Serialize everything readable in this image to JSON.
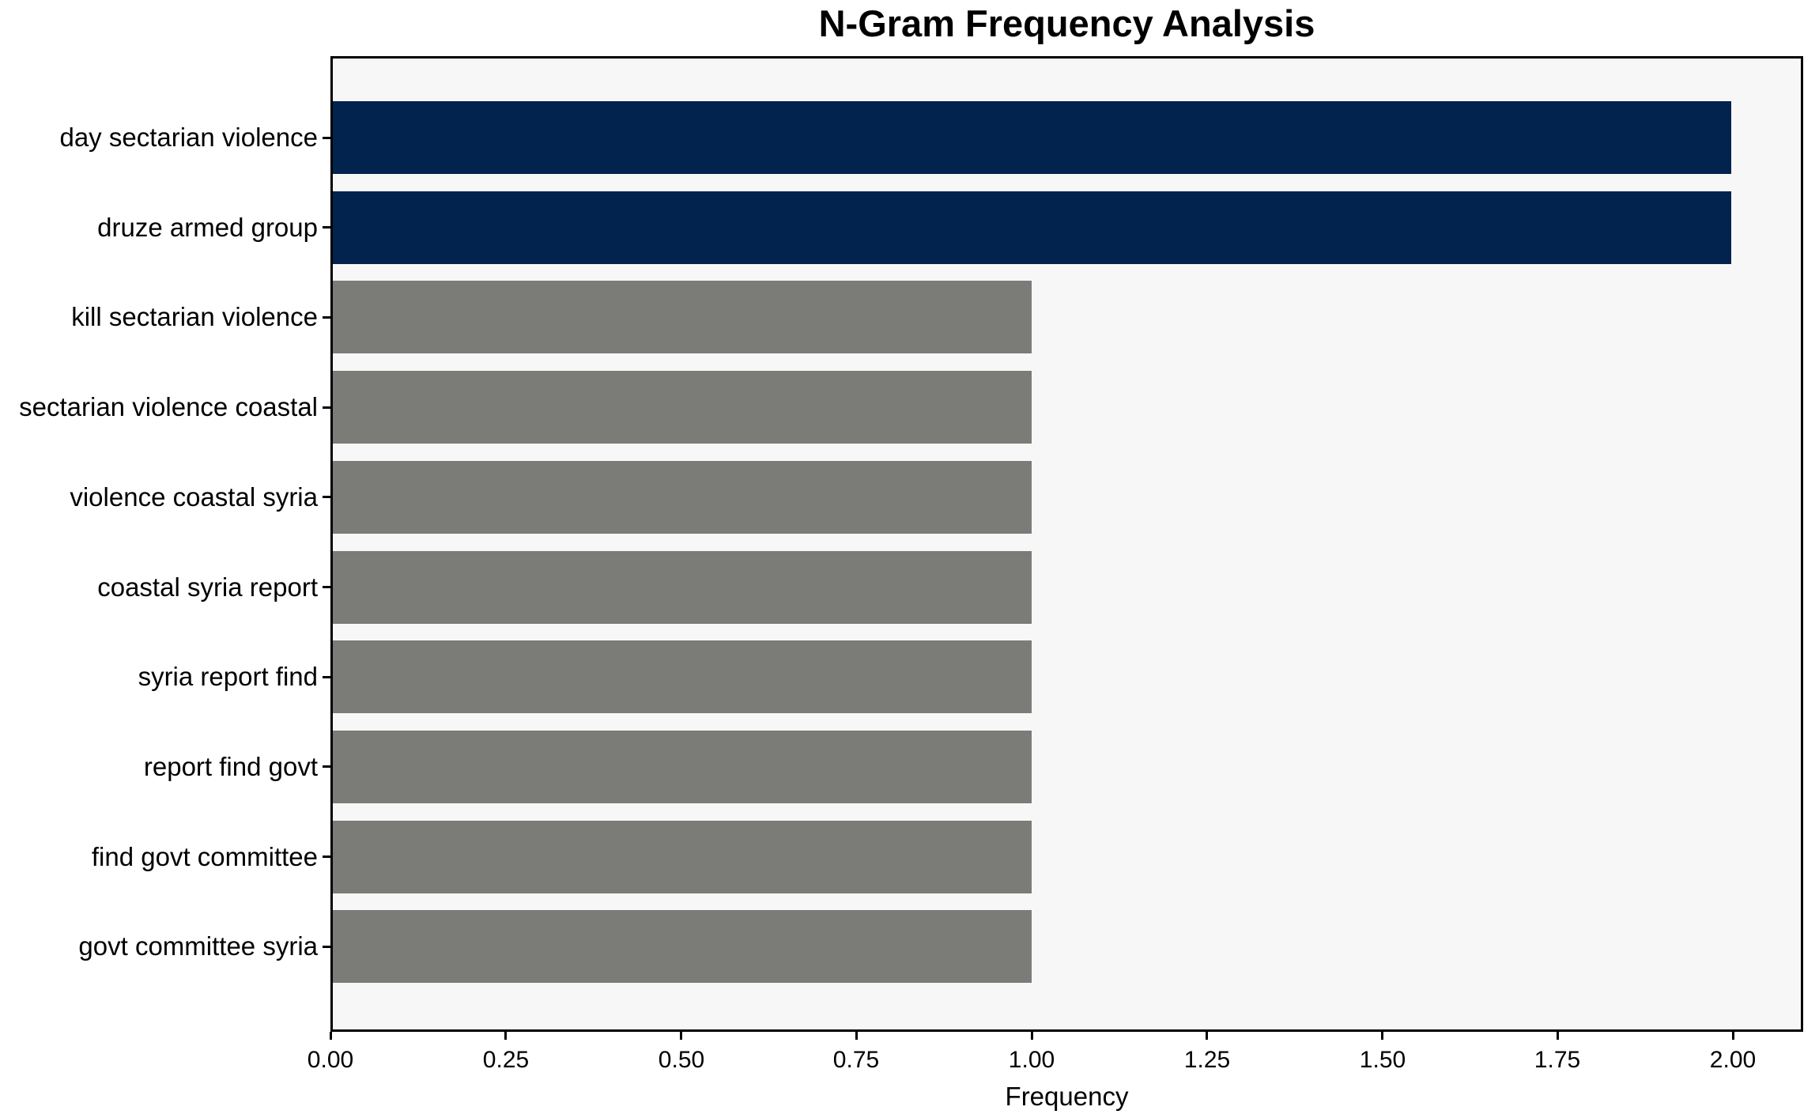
{
  "chart_data": {
    "type": "bar",
    "orientation": "horizontal",
    "title": "N-Gram Frequency Analysis",
    "xlabel": "Frequency",
    "ylabel": "",
    "categories": [
      "day sectarian violence",
      "druze armed group",
      "kill sectarian violence",
      "sectarian violence coastal",
      "violence coastal syria",
      "coastal syria report",
      "syria report find",
      "report find govt",
      "find govt committee",
      "govt committee syria"
    ],
    "values": [
      2.0,
      2.0,
      1.0,
      1.0,
      1.0,
      1.0,
      1.0,
      1.0,
      1.0,
      1.0
    ],
    "xlim": [
      0,
      2.1
    ],
    "xticks": [
      "0.00",
      "0.25",
      "0.50",
      "0.75",
      "1.00",
      "1.25",
      "1.50",
      "1.75",
      "2.00"
    ],
    "xtick_values": [
      0.0,
      0.25,
      0.5,
      0.75,
      1.0,
      1.25,
      1.5,
      1.75,
      2.0
    ],
    "grid": false,
    "legend": null
  },
  "colors": {
    "highlight_bar": "#02234d",
    "default_bar": "#7b7b78",
    "bar_colors": [
      "#02234d",
      "#02234d",
      "#7b7b78",
      "#7b7b78",
      "#7b7b78",
      "#7b7b78",
      "#7b7b78",
      "#7b7b78",
      "#7b7b78",
      "#7b7b78"
    ],
    "plot_background": "#f8f7f7",
    "page_background": "#ffffff",
    "spine": "#000000",
    "text": "#000000"
  }
}
